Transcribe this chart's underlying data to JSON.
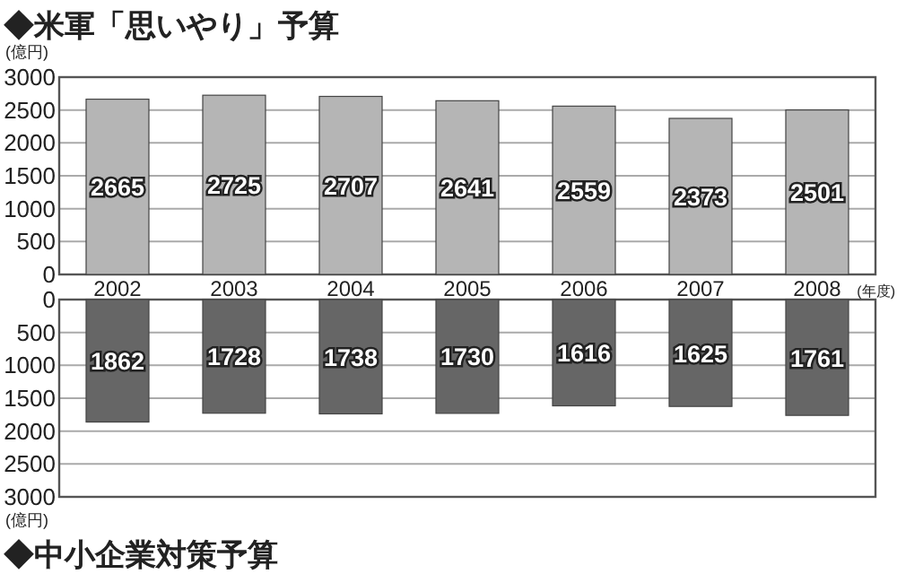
{
  "chart_data": [
    {
      "type": "bar",
      "title": "◆米軍「思いやり」予算",
      "ylabel": "(億円)",
      "xlabel": "(年度)",
      "categories": [
        "2002",
        "2003",
        "2004",
        "2005",
        "2006",
        "2007",
        "2008"
      ],
      "values": [
        2665,
        2725,
        2707,
        2641,
        2559,
        2373,
        2501
      ],
      "color": "#b5b5b5",
      "ylim": [
        0,
        3000
      ],
      "yticks": [
        0,
        500,
        1000,
        1500,
        2000,
        2500,
        3000
      ],
      "grid": "y",
      "data_labels": true
    },
    {
      "type": "bar",
      "title": "◆中小企業対策予算",
      "ylabel": "(億円)",
      "categories": [
        "2002",
        "2003",
        "2004",
        "2005",
        "2006",
        "2007",
        "2008"
      ],
      "values": [
        1862,
        1728,
        1738,
        1730,
        1616,
        1625,
        1761
      ],
      "color": "#666666",
      "ylim": [
        3000,
        0
      ],
      "yticks": [
        0,
        500,
        1000,
        1500,
        2000,
        2500,
        3000
      ],
      "grid": "y",
      "data_labels": true,
      "tick_labels": "y"
    }
  ]
}
